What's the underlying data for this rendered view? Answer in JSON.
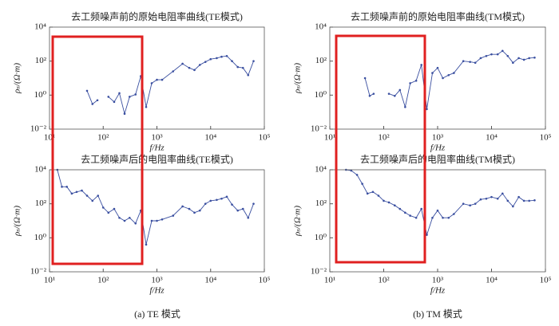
{
  "chart_data": [
    {
      "type": "line",
      "title": "去工频噪声前的原始电阻率曲线(TE模式)",
      "xlabel": "f/Hz",
      "ylabel": "ρₛ/(Ω·m)",
      "xscale": "log",
      "yscale": "log",
      "xlim": [
        10,
        100000
      ],
      "ylim": [
        0.01,
        10000
      ],
      "xticks": [
        {
          "value": 10,
          "label": "10¹"
        },
        {
          "value": 100,
          "label": "10²"
        },
        {
          "value": 1000,
          "label": "10³"
        },
        {
          "value": 10000,
          "label": "10⁴"
        },
        {
          "value": 100000,
          "label": "10⁵"
        }
      ],
      "yticks": [
        {
          "value": 0.01,
          "label": "10⁻²"
        },
        {
          "value": 1,
          "label": "10⁰"
        },
        {
          "value": 100,
          "label": "10²"
        },
        {
          "value": 10000,
          "label": "10⁴"
        }
      ],
      "x": [
        50,
        63,
        78,
        100,
        125,
        160,
        200,
        250,
        310,
        400,
        500,
        630,
        800,
        1000,
        1250,
        2000,
        3000,
        4000,
        5000,
        6300,
        8000,
        10000,
        13000,
        16000,
        20000,
        25000,
        32000,
        40000,
        50000,
        63000
      ],
      "values": [
        1.8,
        0.3,
        0.5,
        null,
        0.8,
        0.4,
        1.3,
        0.08,
        0.8,
        1.1,
        13,
        0.2,
        5,
        8,
        8,
        25,
        70,
        40,
        30,
        60,
        90,
        130,
        150,
        180,
        200,
        100,
        45,
        40,
        15,
        100
      ],
      "color": "#3a4fa0"
    },
    {
      "type": "line",
      "title": "去工频噪声前的原始电阻率曲线(TM模式)",
      "xlabel": "f/Hz",
      "ylabel": "ρₛ/(Ω·m)",
      "xscale": "log",
      "yscale": "log",
      "xlim": [
        10,
        100000
      ],
      "ylim": [
        0.01,
        10000
      ],
      "xticks": [
        {
          "value": 10,
          "label": "10¹"
        },
        {
          "value": 100,
          "label": "10²"
        },
        {
          "value": 1000,
          "label": "10³"
        },
        {
          "value": 10000,
          "label": "10⁴"
        },
        {
          "value": 100000,
          "label": "10⁵"
        }
      ],
      "yticks": [
        {
          "value": 0.01,
          "label": "10⁻²"
        },
        {
          "value": 1,
          "label": "10⁰"
        },
        {
          "value": 100,
          "label": "10²"
        },
        {
          "value": 10000,
          "label": "10⁴"
        }
      ],
      "x": [
        45,
        55,
        65,
        100,
        125,
        160,
        200,
        250,
        310,
        400,
        500,
        630,
        800,
        1000,
        1250,
        1600,
        2000,
        3000,
        4000,
        5000,
        6300,
        8000,
        10000,
        13000,
        16000,
        20000,
        25000,
        32000,
        40000,
        50000,
        63000
      ],
      "values": [
        10,
        0.9,
        1.2,
        null,
        1.2,
        0.9,
        2,
        0.2,
        5,
        7,
        60,
        0.15,
        20,
        40,
        10,
        15,
        20,
        100,
        90,
        80,
        150,
        200,
        250,
        250,
        400,
        200,
        80,
        150,
        120,
        150,
        160
      ],
      "color": "#3a4fa0"
    },
    {
      "type": "line",
      "title": "去工频噪声后的电阻率曲线(TE模式)",
      "xlabel": "f/Hz",
      "ylabel": "ρₛ/(Ω·m)",
      "xscale": "log",
      "yscale": "log",
      "xlim": [
        10,
        100000
      ],
      "ylim": [
        0.01,
        10000
      ],
      "xticks": [
        {
          "value": 10,
          "label": "10¹"
        },
        {
          "value": 100,
          "label": "10²"
        },
        {
          "value": 1000,
          "label": "10³"
        },
        {
          "value": 10000,
          "label": "10⁴"
        },
        {
          "value": 100000,
          "label": "10⁵"
        }
      ],
      "yticks": [
        {
          "value": 0.01,
          "label": "10⁻²"
        },
        {
          "value": 1,
          "label": "10⁰"
        },
        {
          "value": 100,
          "label": "10²"
        },
        {
          "value": 10000,
          "label": "10⁴"
        }
      ],
      "x": [
        14,
        17,
        21,
        26,
        32,
        40,
        50,
        63,
        80,
        100,
        125,
        160,
        200,
        250,
        310,
        400,
        500,
        630,
        800,
        1000,
        1250,
        2000,
        3000,
        4000,
        5000,
        6300,
        8000,
        10000,
        13000,
        16000,
        20000,
        25000,
        32000,
        40000,
        50000,
        63000
      ],
      "values": [
        10000,
        1000,
        1000,
        400,
        500,
        600,
        300,
        150,
        300,
        60,
        30,
        50,
        15,
        10,
        15,
        7,
        40,
        0.4,
        10,
        10,
        12,
        20,
        70,
        50,
        30,
        40,
        100,
        150,
        170,
        200,
        260,
        90,
        40,
        50,
        15,
        100
      ],
      "color": "#3a4fa0"
    },
    {
      "type": "line",
      "title": "去工频噪声后的电阻率曲线(TM模式)",
      "xlabel": "f/Hz",
      "ylabel": "ρₛ/(Ω·m)",
      "xscale": "log",
      "yscale": "log",
      "xlim": [
        10,
        100000
      ],
      "ylim": [
        0.01,
        10000
      ],
      "xticks": [
        {
          "value": 10,
          "label": "10¹"
        },
        {
          "value": 100,
          "label": "10²"
        },
        {
          "value": 1000,
          "label": "10³"
        },
        {
          "value": 10000,
          "label": "10⁴"
        },
        {
          "value": 100000,
          "label": "10⁵"
        }
      ],
      "yticks": [
        {
          "value": 0.01,
          "label": "10⁻²"
        },
        {
          "value": 1,
          "label": "10⁰"
        },
        {
          "value": 100,
          "label": "10²"
        },
        {
          "value": 10000,
          "label": "10⁴"
        }
      ],
      "x": [
        20,
        25,
        32,
        40,
        50,
        63,
        80,
        100,
        125,
        160,
        200,
        250,
        310,
        400,
        500,
        630,
        800,
        1000,
        1250,
        1600,
        2000,
        3000,
        4000,
        5000,
        6300,
        8000,
        10000,
        13000,
        16000,
        20000,
        25000,
        32000,
        40000,
        50000,
        63000
      ],
      "values": [
        10000,
        9000,
        5000,
        1500,
        400,
        500,
        300,
        150,
        120,
        80,
        50,
        30,
        20,
        15,
        50,
        1.5,
        15,
        40,
        15,
        15,
        25,
        100,
        80,
        100,
        180,
        200,
        250,
        200,
        400,
        150,
        70,
        250,
        150,
        150,
        160
      ],
      "color": "#3a4fa0"
    }
  ],
  "captions": [
    "(a) TE 模式",
    "(b) TM 模式"
  ]
}
